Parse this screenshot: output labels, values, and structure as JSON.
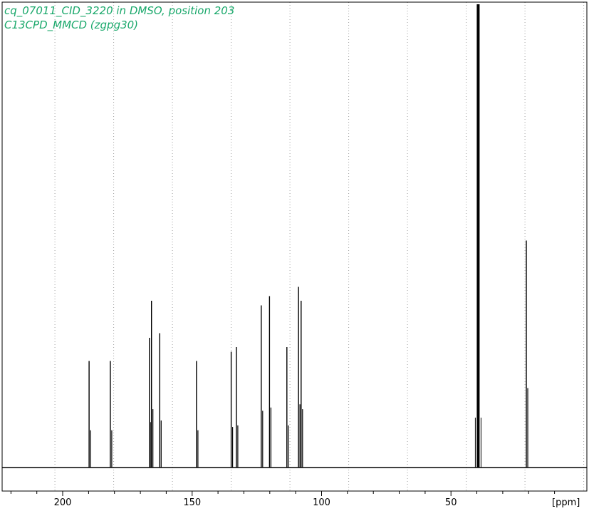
{
  "chart_data": {
    "type": "line",
    "title_lines": [
      "cq_07011_CID_3220 in DMSO, position 203",
      "C13CPD_MMCD (zgpg30)"
    ],
    "x_unit_label": "[ppm]",
    "x_ticks": [
      200,
      150,
      100,
      50
    ],
    "xlim": [
      223.4,
      -2.5
    ],
    "x_reversed": true,
    "grid": "vertical dotted",
    "ylim": [
      0,
      1
    ],
    "baseline": 0.0,
    "peaks": [
      {
        "ppm": 189.8,
        "height": 0.23,
        "doublet": true
      },
      {
        "ppm": 181.6,
        "height": 0.23,
        "doublet": true
      },
      {
        "ppm": 166.5,
        "height": 0.28,
        "doublet": true
      },
      {
        "ppm": 165.7,
        "height": 0.36,
        "doublet": true
      },
      {
        "ppm": 162.5,
        "height": 0.29,
        "doublet": true
      },
      {
        "ppm": 148.3,
        "height": 0.23,
        "doublet": true
      },
      {
        "ppm": 134.9,
        "height": 0.25,
        "doublet": true
      },
      {
        "ppm": 132.9,
        "height": 0.26,
        "doublet": true
      },
      {
        "ppm": 123.3,
        "height": 0.35,
        "doublet": true
      },
      {
        "ppm": 120.1,
        "height": 0.37,
        "doublet": true
      },
      {
        "ppm": 113.4,
        "height": 0.26,
        "doublet": true
      },
      {
        "ppm": 108.9,
        "height": 0.39,
        "doublet": true
      },
      {
        "ppm": 107.9,
        "height": 0.36,
        "doublet": true
      },
      {
        "ppm": 39.5,
        "height": 1.0,
        "solvent": true
      },
      {
        "ppm": 20.9,
        "height": 0.49,
        "doublet": true
      }
    ]
  },
  "colors": {
    "spectrum": "#000000",
    "title": "#1aa86b",
    "grid": "#a0a0a0",
    "background": "#ffffff"
  }
}
